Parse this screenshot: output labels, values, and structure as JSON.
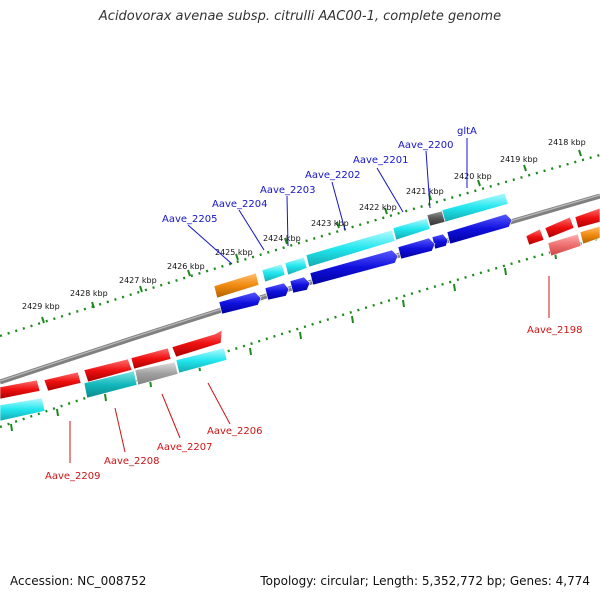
{
  "header": {
    "title": "Acidovorax avenae subsp. citrulli AAC00-1, complete genome"
  },
  "footer": {
    "accession": "Accession: NC_008752",
    "stats": "Topology: circular; Length: 5,352,772 bp; Genes: 4,774"
  },
  "ticks": [
    "2418 kbp",
    "2419 kbp",
    "2420 kbp",
    "2421 kbp",
    "2422 kbp",
    "2423 kbp",
    "2424 kbp",
    "2425 kbp",
    "2426 kbp",
    "2427 kbp",
    "2428 kbp",
    "2429 kbp"
  ],
  "genes_top": [
    "gltA",
    "Aave_2200",
    "Aave_2201",
    "Aave_2202",
    "Aave_2203",
    "Aave_2204",
    "Aave_2205"
  ],
  "genes_bottom": [
    "Aave_2198",
    "Aave_2206",
    "Aave_2207",
    "Aave_2208",
    "Aave_2209"
  ],
  "colors": {
    "forward_cds": "#1010dd",
    "forward_feature": "#22e6ee",
    "reverse_cds": "#ee1010",
    "reverse_feature": "#12b8bb",
    "tick": "#1d8a1d",
    "orange_feature": "#f08a10",
    "grey_feature": "#a0a0a0",
    "dark_feature": "#555555",
    "backbone": "#808080"
  }
}
